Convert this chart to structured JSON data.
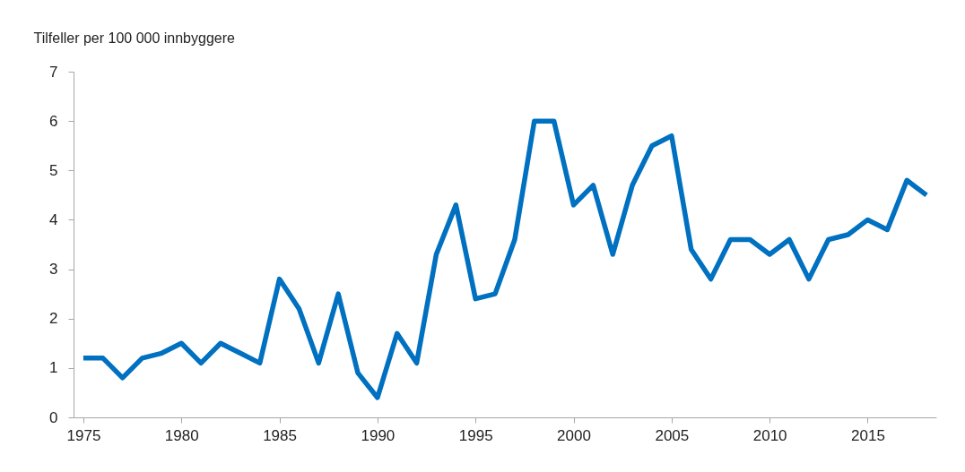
{
  "chart_data": {
    "type": "line",
    "ylabel": "Tilfeller per 100 000 innbyggere",
    "x": [
      1975,
      1976,
      1977,
      1978,
      1979,
      1980,
      1981,
      1982,
      1983,
      1984,
      1985,
      1986,
      1987,
      1988,
      1989,
      1990,
      1991,
      1992,
      1993,
      1994,
      1995,
      1996,
      1997,
      1998,
      1999,
      2000,
      2001,
      2002,
      2003,
      2004,
      2005,
      2006,
      2007,
      2008,
      2009,
      2010,
      2011,
      2012,
      2013,
      2014,
      2015,
      2016,
      2017,
      2018
    ],
    "series": [
      {
        "color": "#0070c0",
        "values": [
          1.2,
          1.2,
          0.8,
          1.2,
          1.3,
          1.5,
          1.1,
          1.5,
          1.3,
          1.1,
          2.8,
          2.2,
          1.1,
          2.5,
          0.9,
          0.4,
          1.7,
          1.1,
          3.3,
          4.3,
          2.4,
          2.5,
          3.6,
          6.0,
          6.0,
          4.3,
          4.7,
          3.3,
          4.7,
          5.5,
          5.7,
          3.4,
          2.8,
          3.6,
          3.6,
          3.3,
          3.6,
          2.8,
          3.6,
          3.7,
          4.0,
          3.8,
          4.8,
          4.5
        ]
      }
    ],
    "xlim": [
      1974.5,
      2018.5
    ],
    "xticks": [
      1975,
      1980,
      1985,
      1990,
      1995,
      2000,
      2005,
      2010,
      2015
    ],
    "ylim": [
      0,
      7
    ],
    "yticks": [
      0,
      1,
      2,
      3,
      4,
      5,
      6,
      7
    ],
    "grid": false,
    "marker": "none",
    "line_style": "solid"
  }
}
